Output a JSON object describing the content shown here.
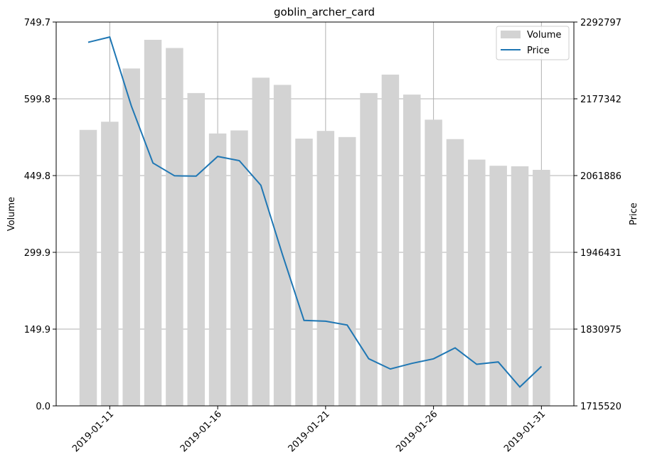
{
  "chart_data": {
    "type": "bar+line",
    "title": "goblin_archer_card",
    "xlabel": "",
    "ylabel_left": "Volume",
    "ylabel_right": "Price",
    "dates": [
      "2019-01-10",
      "2019-01-11",
      "2019-01-12",
      "2019-01-13",
      "2019-01-14",
      "2019-01-15",
      "2019-01-16",
      "2019-01-17",
      "2019-01-18",
      "2019-01-19",
      "2019-01-20",
      "2019-01-21",
      "2019-01-22",
      "2019-01-23",
      "2019-01-24",
      "2019-01-25",
      "2019-01-26",
      "2019-01-27",
      "2019-01-28",
      "2019-01-29",
      "2019-01-30",
      "2019-01-31"
    ],
    "x_ticks": [
      "2019-01-11",
      "2019-01-16",
      "2019-01-21",
      "2019-01-26",
      "2019-01-31"
    ],
    "series": [
      {
        "name": "Volume",
        "kind": "bar",
        "axis": "left",
        "color": "#d3d3d3",
        "values": [
          539,
          555,
          659,
          715,
          699,
          611,
          532,
          538,
          641,
          627,
          522,
          537,
          525,
          611,
          647,
          608,
          559,
          521,
          481,
          469,
          468,
          461
        ]
      },
      {
        "name": "Price",
        "kind": "line",
        "axis": "right",
        "color": "#1f77b4",
        "values": [
          2262300,
          2270200,
          2166500,
          2080800,
          2061600,
          2061000,
          2090600,
          2084300,
          2047300,
          1943000,
          1844000,
          1842800,
          1837100,
          1786400,
          1771000,
          1779500,
          1786300,
          1802800,
          1778100,
          1781600,
          1744000,
          1774900
        ]
      }
    ],
    "y_left": {
      "min": 0,
      "max": 749.7,
      "ticks": [
        "0.0",
        "149.9",
        "299.9",
        "449.8",
        "599.8",
        "749.7"
      ]
    },
    "y_right": {
      "min": 1715520,
      "max": 2292797,
      "ticks": [
        "1715520",
        "1830975",
        "1946431",
        "2061886",
        "2177342",
        "2292797"
      ]
    },
    "grid": true,
    "legend_position": "top-right"
  }
}
